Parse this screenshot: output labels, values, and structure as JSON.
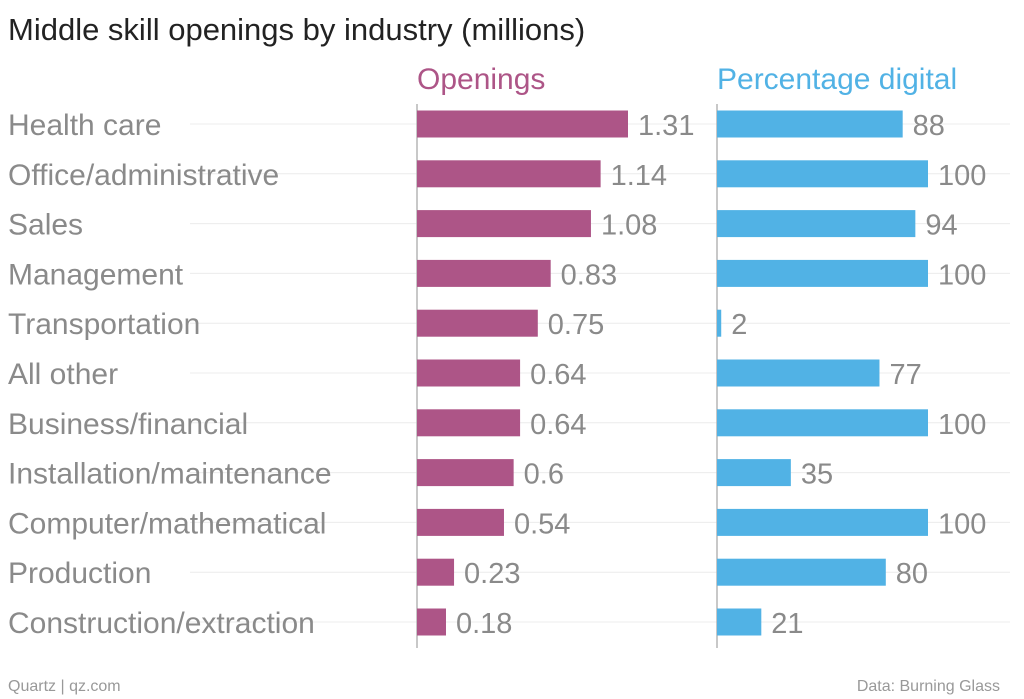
{
  "chart_data": {
    "type": "bar",
    "title": "Middle skill openings by industry (millions)",
    "categories": [
      "Health care",
      "Office/administrative",
      "Sales",
      "Management",
      "Transportation",
      "All other",
      "Business/financial",
      "Installation/maintenance",
      "Computer/mathematical",
      "Production",
      "Construction/extraction"
    ],
    "series": [
      {
        "name": "Openings",
        "color": "#ad5587",
        "values": [
          1.31,
          1.14,
          1.08,
          0.83,
          0.75,
          0.64,
          0.64,
          0.6,
          0.54,
          0.23,
          0.18
        ],
        "labels": [
          "1.31",
          "1.14",
          "1.08",
          "0.83",
          "0.75",
          "0.64",
          "0.64",
          "0.6",
          "0.54",
          "0.23",
          "0.18"
        ],
        "xlim": [
          0,
          1.31
        ]
      },
      {
        "name": "Percentage digital",
        "color": "#51b2e5",
        "values": [
          88,
          100,
          94,
          100,
          2,
          77,
          100,
          35,
          100,
          80,
          21
        ],
        "labels": [
          "88",
          "100",
          "94",
          "100",
          "2",
          "77",
          "100",
          "35",
          "100",
          "80",
          "21"
        ],
        "xlim": [
          0,
          100
        ]
      }
    ],
    "xlabel": "",
    "ylabel": ""
  },
  "footer": {
    "source_left": "Quartz | qz.com",
    "source_right": "Data: Burning Glass"
  }
}
